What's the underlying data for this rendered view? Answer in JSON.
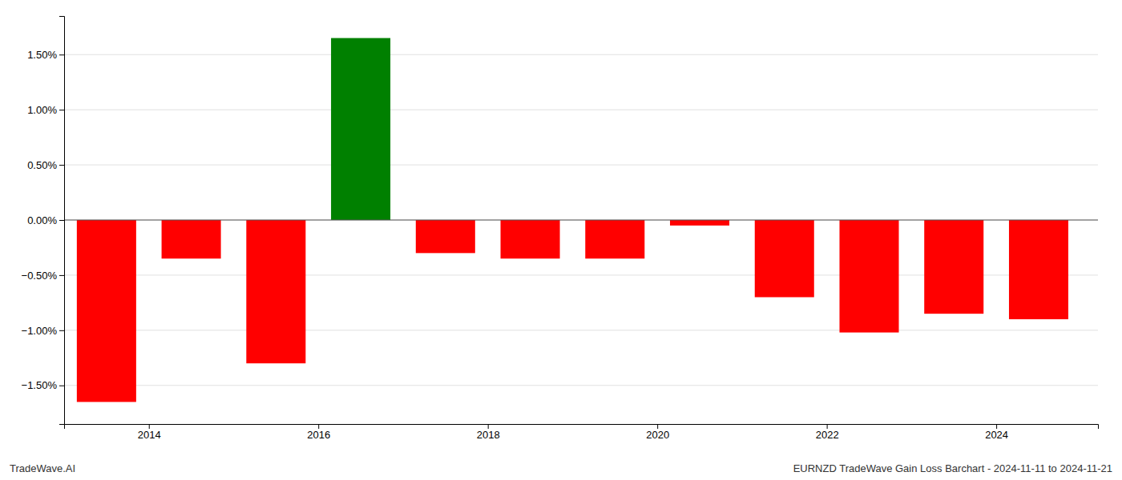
{
  "chart_data": {
    "type": "bar",
    "x": [
      2013.5,
      2014.5,
      2015.5,
      2016.5,
      2017.5,
      2018.5,
      2019.5,
      2020.5,
      2021.5,
      2022.5,
      2023.5,
      2024.5
    ],
    "values": [
      -1.65,
      -0.35,
      -1.3,
      1.65,
      -0.3,
      -0.35,
      -0.35,
      -0.05,
      -0.7,
      -1.02,
      -0.85,
      -0.9
    ],
    "colors": [
      "#ff0000",
      "#ff0000",
      "#ff0000",
      "#008000",
      "#ff0000",
      "#ff0000",
      "#ff0000",
      "#ff0000",
      "#ff0000",
      "#ff0000",
      "#ff0000",
      "#ff0000"
    ],
    "xlim": [
      2013.0,
      2025.2
    ],
    "xticks": [
      2014,
      2016,
      2018,
      2020,
      2022,
      2024
    ],
    "ylim": [
      -1.85,
      1.85
    ],
    "yticks": [
      {
        "value": -1.5,
        "label": "−1.50%"
      },
      {
        "value": -1.0,
        "label": "−1.00%"
      },
      {
        "value": -0.5,
        "label": "−0.50%"
      },
      {
        "value": 0.0,
        "label": "0.00%"
      },
      {
        "value": 0.5,
        "label": "0.50%"
      },
      {
        "value": 1.0,
        "label": "1.00%"
      },
      {
        "value": 1.5,
        "label": "1.50%"
      }
    ],
    "grid": true,
    "annotations": [
      "TradeWave.AI",
      "EURNZD TradeWave Gain Loss Barchart - 2024-11-11 to 2024-11-21"
    ]
  }
}
